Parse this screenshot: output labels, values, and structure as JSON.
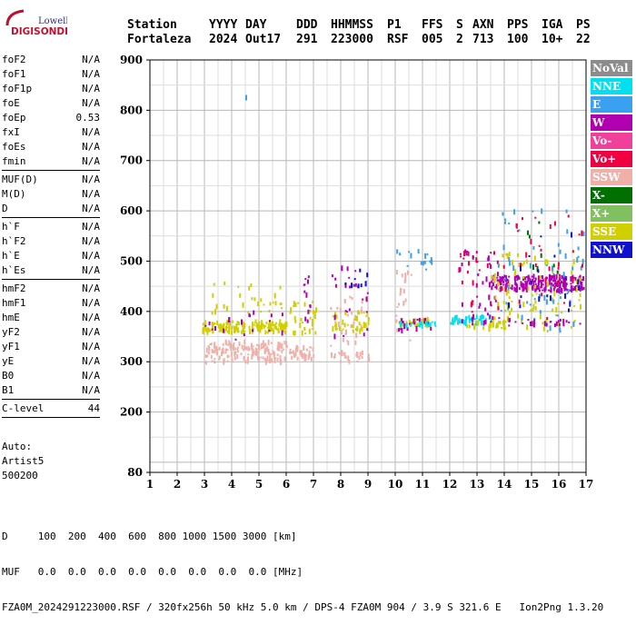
{
  "logo": {
    "line1": "Lowell",
    "line2": "DIGISONDE"
  },
  "header": {
    "labels": [
      "Station",
      "YYYY",
      "DAY",
      "DDD",
      "HHMMSS",
      "P1",
      "FFS",
      "S",
      "AXN",
      "PPS",
      "IGA",
      "PS"
    ],
    "values": [
      "Fortaleza",
      "2024",
      "Out17",
      "291",
      "223000",
      "RSF",
      "005",
      "2",
      "713",
      "100",
      "10+",
      "22"
    ]
  },
  "params": {
    "group1": [
      {
        "name": "foF2",
        "value": "N/A"
      },
      {
        "name": "foF1",
        "value": "N/A"
      },
      {
        "name": "foF1p",
        "value": "N/A"
      },
      {
        "name": "foE",
        "value": "N/A"
      },
      {
        "name": "foEp",
        "value": "0.53"
      },
      {
        "name": "fxI",
        "value": "N/A"
      },
      {
        "name": "foEs",
        "value": "N/A"
      },
      {
        "name": "fmin",
        "value": "N/A"
      }
    ],
    "group2": [
      {
        "name": "MUF(D)",
        "value": "N/A"
      },
      {
        "name": "M(D)",
        "value": "N/A"
      },
      {
        "name": "D",
        "value": "N/A"
      }
    ],
    "group3": [
      {
        "name": "h`F",
        "value": "N/A"
      },
      {
        "name": "h`F2",
        "value": "N/A"
      },
      {
        "name": "h`E",
        "value": "N/A"
      },
      {
        "name": "h`Es",
        "value": "N/A"
      }
    ],
    "group4": [
      {
        "name": "hmF2",
        "value": "N/A"
      },
      {
        "name": "hmF1",
        "value": "N/A"
      },
      {
        "name": "hmE",
        "value": "N/A"
      },
      {
        "name": "yF2",
        "value": "N/A"
      },
      {
        "name": "yF1",
        "value": "N/A"
      },
      {
        "name": "yE",
        "value": "N/A"
      },
      {
        "name": "B0",
        "value": "N/A"
      },
      {
        "name": "B1",
        "value": "N/A"
      }
    ],
    "group5": [
      {
        "name": "C-level",
        "value": "44"
      }
    ]
  },
  "auto": {
    "line1": "Auto:",
    "line2": "Artist5",
    "line3": "500200"
  },
  "legend": [
    {
      "label": "NoVal",
      "color": "#8c8c8c"
    },
    {
      "label": "NNE",
      "color": "#00e0f0"
    },
    {
      "label": "E",
      "color": "#3aa0f0"
    },
    {
      "label": "W",
      "color": "#b000b0"
    },
    {
      "label": "Vo-",
      "color": "#f0409a"
    },
    {
      "label": "Vo+",
      "color": "#f00040"
    },
    {
      "label": "SSW",
      "color": "#f0b0a8"
    },
    {
      "label": "X-",
      "color": "#007000"
    },
    {
      "label": "X+",
      "color": "#80c060"
    },
    {
      "label": "SSE",
      "color": "#d0d000"
    },
    {
      "label": "NNW",
      "color": "#1010d0"
    }
  ],
  "footer": {
    "line1": "D     100  200  400  600  800 1000 1500 3000 [km]",
    "line2": "MUF   0.0  0.0  0.0  0.0  0.0  0.0  0.0  0.0 [MHz]",
    "line3": "FZA0M_2024291223000.RSF / 320fx256h 50 kHz 5.0 km / DPS-4 FZA0M 904 / 3.9 S 321.6 E   Ion2Png 1.3.20"
  },
  "chart_data": {
    "type": "scatter",
    "xlim": [
      1,
      17
    ],
    "ylim": [
      80,
      900
    ],
    "x_ticks": [
      1,
      2,
      3,
      4,
      5,
      6,
      7,
      8,
      9,
      10,
      11,
      12,
      13,
      14,
      15,
      16,
      17
    ],
    "y_ticks": [
      80,
      200,
      300,
      400,
      500,
      600,
      700,
      800,
      900
    ],
    "grid": true,
    "clusters": [
      {
        "color": "#d0d000",
        "x": [
          2.9,
          6.0
        ],
        "y": [
          358,
          380
        ],
        "n": 170
      },
      {
        "color": "#f0b0a8",
        "x": [
          3.0,
          6.0
        ],
        "y": [
          298,
          340
        ],
        "n": 150
      },
      {
        "color": "#d0d000",
        "x": [
          3.1,
          6.0
        ],
        "y": [
          380,
          460
        ],
        "n": 30
      },
      {
        "color": "#b000b0",
        "x": [
          3.0,
          6.0
        ],
        "y": [
          340,
          400
        ],
        "n": 20
      },
      {
        "color": "#f0b0a8",
        "x": [
          6.1,
          7.0
        ],
        "y": [
          305,
          330
        ],
        "n": 35
      },
      {
        "color": "#d0d000",
        "x": [
          6.1,
          7.1
        ],
        "y": [
          355,
          420
        ],
        "n": 35
      },
      {
        "color": "#b000b0",
        "x": [
          6.6,
          7.0
        ],
        "y": [
          370,
          470
        ],
        "n": 12
      },
      {
        "color": "#f0b0a8",
        "x": [
          7.6,
          9.0
        ],
        "y": [
          300,
          320
        ],
        "n": 25
      },
      {
        "color": "#f0b0a8",
        "x": [
          7.6,
          9.0
        ],
        "y": [
          330,
          430
        ],
        "n": 30
      },
      {
        "color": "#d0d000",
        "x": [
          7.6,
          9.0
        ],
        "y": [
          360,
          400
        ],
        "n": 40
      },
      {
        "color": "#b000b0",
        "x": [
          7.6,
          9.0
        ],
        "y": [
          350,
          490
        ],
        "n": 25
      },
      {
        "color": "#1010d0",
        "x": [
          8.0,
          9.0
        ],
        "y": [
          450,
          490
        ],
        "n": 8
      },
      {
        "color": "#f0b0a8",
        "x": [
          10.0,
          10.6
        ],
        "y": [
          340,
          480
        ],
        "n": 25
      },
      {
        "color": "#d0d000",
        "x": [
          10.1,
          11.3
        ],
        "y": [
          370,
          385
        ],
        "n": 30
      },
      {
        "color": "#b000b0",
        "x": [
          10.1,
          11.3
        ],
        "y": [
          360,
          385
        ],
        "n": 20
      },
      {
        "color": "#00e0f0",
        "x": [
          10.0,
          11.6
        ],
        "y": [
          370,
          380
        ],
        "n": 20
      },
      {
        "color": "#3aa0f0",
        "x": [
          10.0,
          11.5
        ],
        "y": [
          480,
          520
        ],
        "n": 15
      },
      {
        "color": "#00e0f0",
        "x": [
          12.0,
          13.5
        ],
        "y": [
          375,
          390
        ],
        "n": 40
      },
      {
        "color": "#b000b0",
        "x": [
          12.3,
          13.8
        ],
        "y": [
          370,
          525
        ],
        "n": 45
      },
      {
        "color": "#f00040",
        "x": [
          12.3,
          13.8
        ],
        "y": [
          380,
          520
        ],
        "n": 20
      },
      {
        "color": "#d0d000",
        "x": [
          12.5,
          14.0
        ],
        "y": [
          365,
          380
        ],
        "n": 25
      },
      {
        "color": "#b000b0",
        "x": [
          13.5,
          16.9
        ],
        "y": [
          440,
          470
        ],
        "n": 220
      },
      {
        "color": "#d0d000",
        "x": [
          13.5,
          16.9
        ],
        "y": [
          360,
          520
        ],
        "n": 90
      },
      {
        "color": "#3aa0f0",
        "x": [
          13.6,
          16.9
        ],
        "y": [
          360,
          600
        ],
        "n": 60
      },
      {
        "color": "#f00040",
        "x": [
          13.8,
          16.9
        ],
        "y": [
          380,
          590
        ],
        "n": 30
      },
      {
        "color": "#007000",
        "x": [
          14.5,
          16.0
        ],
        "y": [
          470,
          600
        ],
        "n": 8
      },
      {
        "color": "#1010d0",
        "x": [
          14.0,
          16.9
        ],
        "y": [
          400,
          560
        ],
        "n": 20
      },
      {
        "color": "#b000b0",
        "x": [
          14.0,
          16.9
        ],
        "y": [
          370,
          385
        ],
        "n": 25
      },
      {
        "color": "#3aa0f0",
        "x": [
          4.5,
          4.5
        ],
        "y": [
          825,
          825
        ],
        "n": 1
      }
    ]
  }
}
